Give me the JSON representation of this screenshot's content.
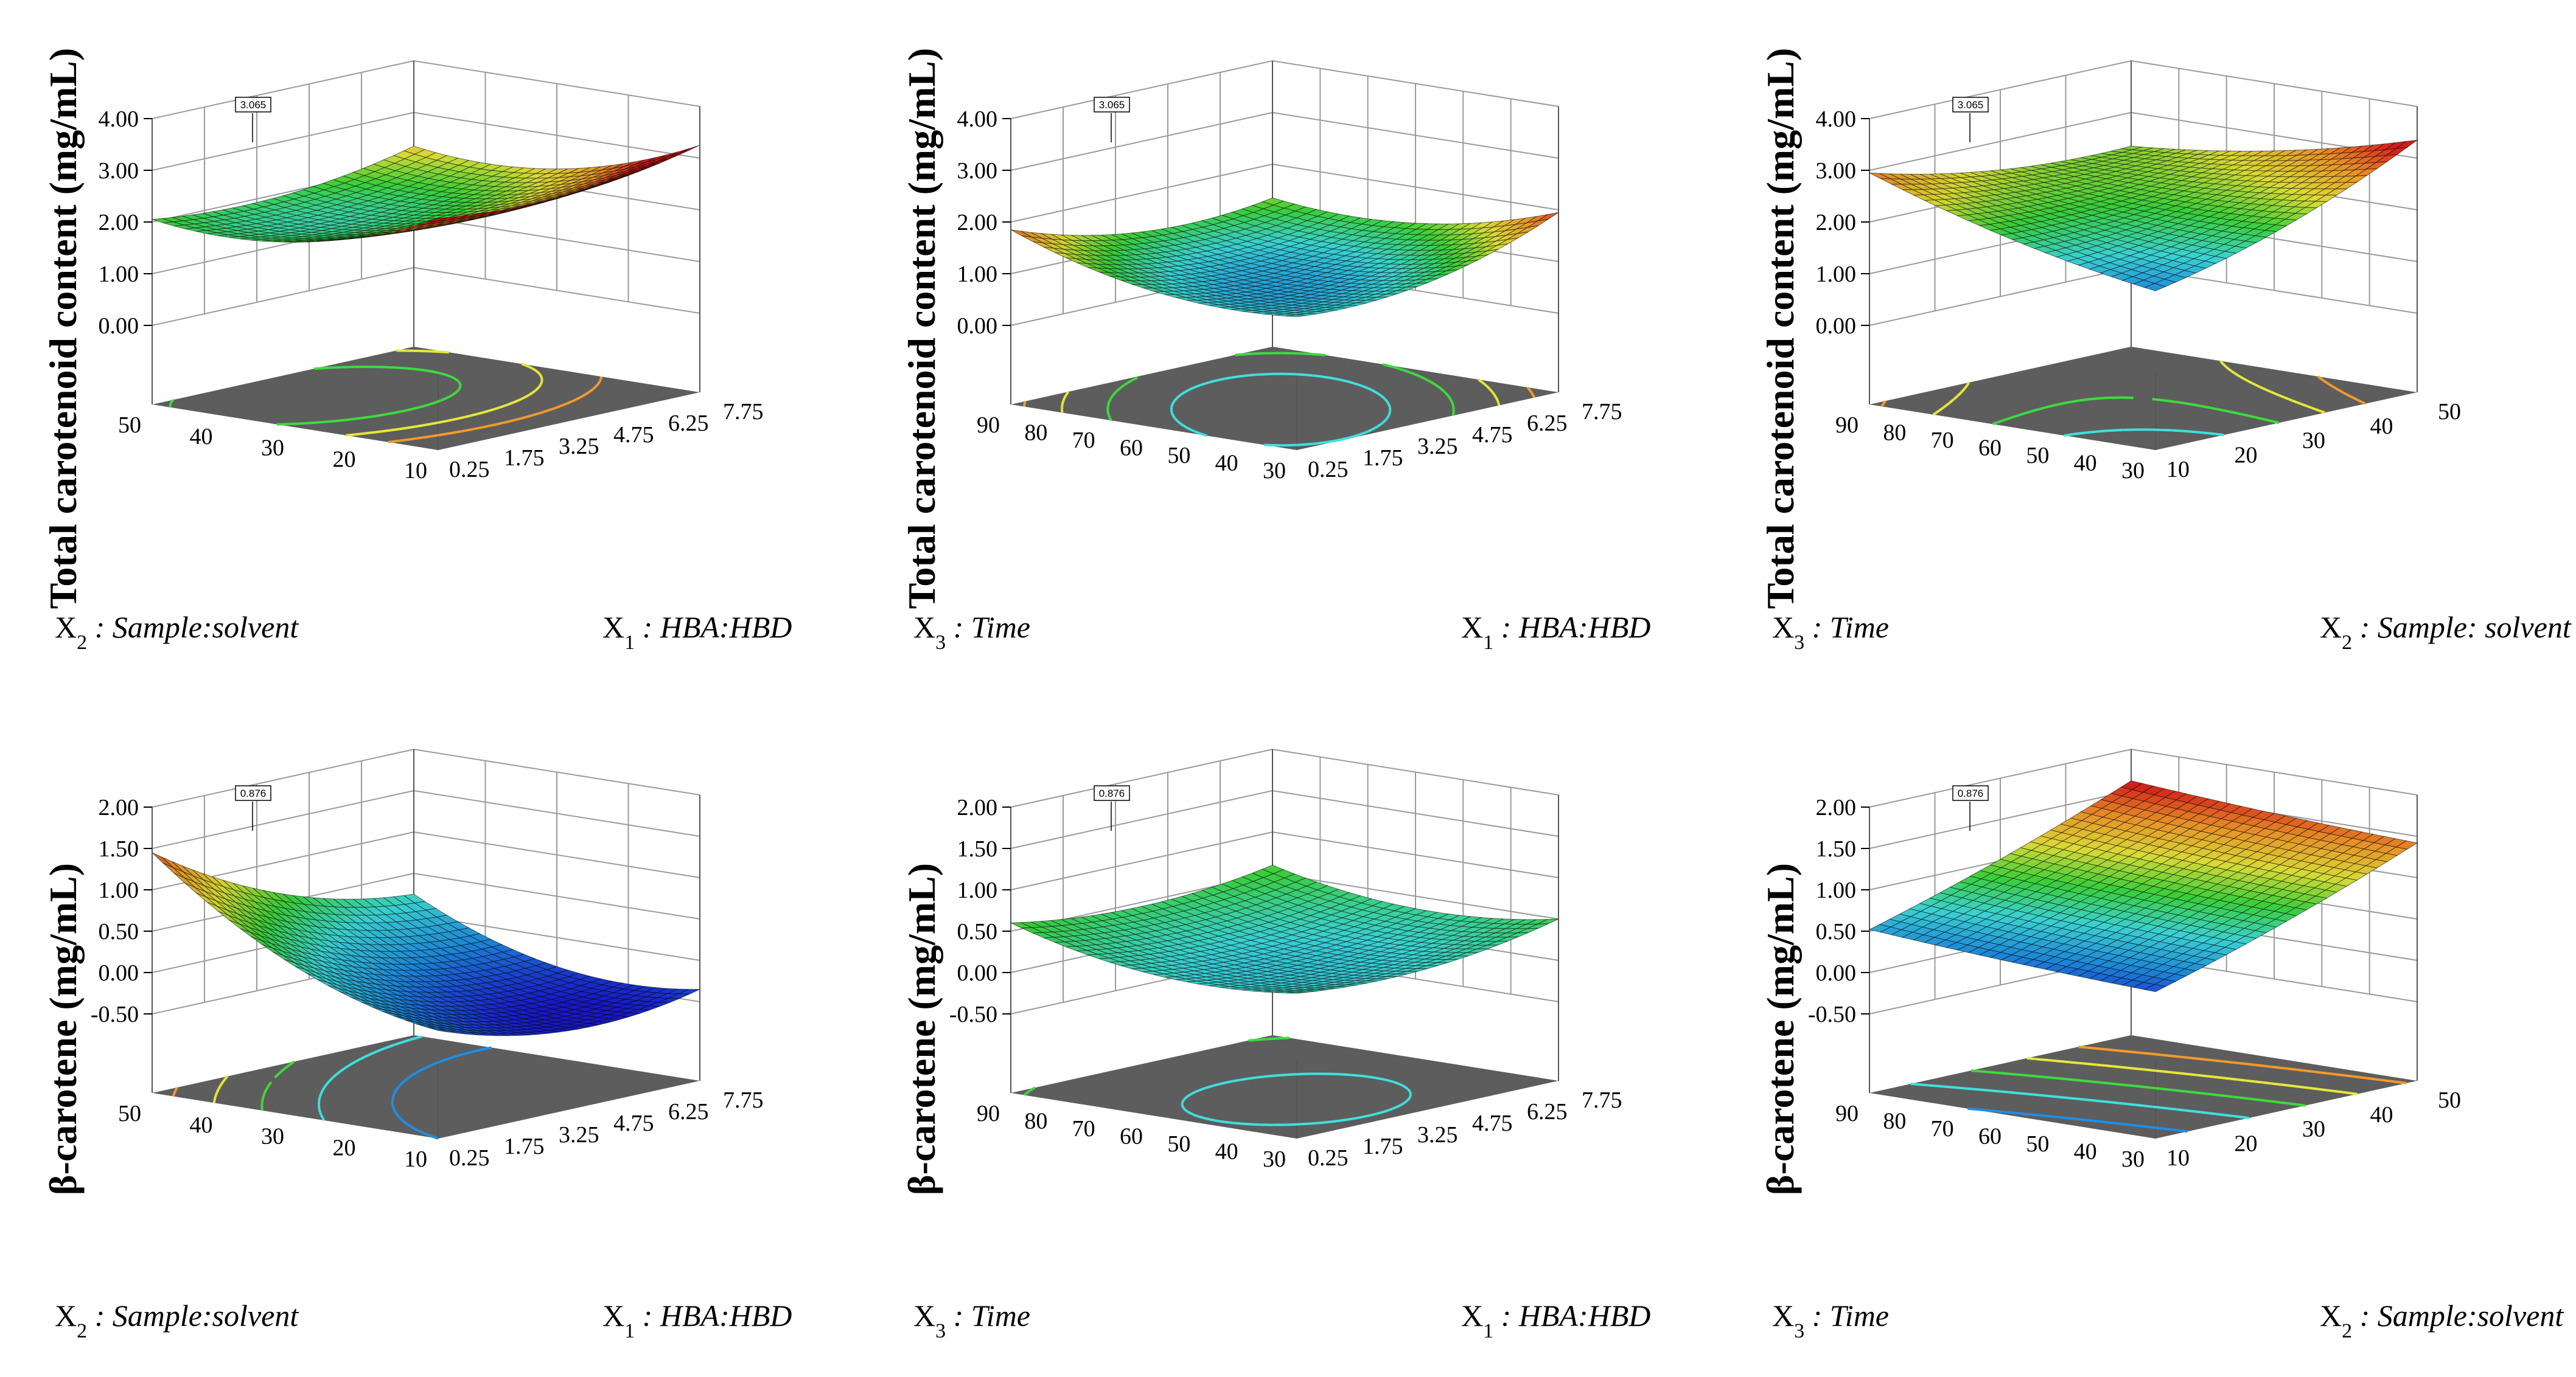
{
  "figure": {
    "rows": 2,
    "cols": 3
  },
  "colors": {
    "floor": "#5d5d5d",
    "grid": "#9a9a9a",
    "axis": "#000000",
    "colormap": [
      "#1a1ad4",
      "#1e8fe6",
      "#3fe0e0",
      "#3ddc3d",
      "#e8e83a",
      "#f59a2a",
      "#e01c1c"
    ]
  },
  "chart_data": [
    {
      "id": "tcc-x1-x2",
      "type": "surface3d",
      "zlabel": "Total carotenoid content (mg/mL)",
      "zticks": [
        "0.00",
        "1.00",
        "2.00",
        "3.00",
        "4.00"
      ],
      "zlim": [
        0,
        4
      ],
      "x": {
        "sub": "1",
        "label": "HBA:HBD",
        "ticks": [
          "0.25",
          "1.75",
          "3.25",
          "4.75",
          "6.25",
          "7.75"
        ],
        "range": [
          0.25,
          7.75
        ]
      },
      "y": {
        "sub": "2",
        "label": "Sample:solvent",
        "ticks": [
          "10",
          "20",
          "30",
          "40",
          "50"
        ],
        "range": [
          10,
          50
        ]
      },
      "flag_value": "3.065",
      "model": {
        "c": 1.95,
        "x": 0.15,
        "y": -0.45,
        "xx": 0.25,
        "yy": 0.45,
        "xy": 0.0
      },
      "color_range": [
        1.2,
        2.8
      ]
    },
    {
      "id": "tcc-x1-x3",
      "type": "surface3d",
      "zlabel": "Total carotenoid content (mg/mL)",
      "zticks": [
        "0.00",
        "1.00",
        "2.00",
        "3.00",
        "4.00"
      ],
      "zlim": [
        0,
        4
      ],
      "x": {
        "sub": "1",
        "label": "HBA:HBD",
        "ticks": [
          "0.25",
          "1.75",
          "3.25",
          "4.75",
          "6.25",
          "7.75"
        ],
        "range": [
          0.25,
          7.75
        ]
      },
      "y": {
        "sub": "3",
        "label": "Time",
        "ticks": [
          "30",
          "40",
          "50",
          "60",
          "70",
          "80",
          "90"
        ],
        "range": [
          30,
          90
        ]
      },
      "flag_value": "3.065",
      "model": {
        "c": 0.85,
        "x": 0.1,
        "y": 0.05,
        "xx": 0.35,
        "yy": 0.35,
        "xy": -0.35
      },
      "color_range": [
        0.5,
        2.0
      ]
    },
    {
      "id": "tcc-x2-x3",
      "type": "surface3d",
      "zlabel": "Total carotenoid content (mg/mL)",
      "zticks": [
        "0.00",
        "1.00",
        "2.00",
        "3.00",
        "4.00"
      ],
      "zlim": [
        0,
        4
      ],
      "x": {
        "sub": "2",
        "label": "Sample: solvent",
        "ticks": [
          "10",
          "20",
          "30",
          "40",
          "50"
        ],
        "range": [
          10,
          50
        ]
      },
      "y": {
        "sub": "3",
        "label": "Time",
        "ticks": [
          "30",
          "40",
          "50",
          "60",
          "70",
          "80",
          "90"
        ],
        "range": [
          30,
          90
        ]
      },
      "flag_value": "3.065",
      "model": {
        "c": 2.2,
        "x": 0.3,
        "y": 0.1,
        "xx": 0.2,
        "yy": 0.15,
        "xy": -0.6
      },
      "color_range": [
        1.2,
        3.2
      ]
    },
    {
      "id": "bc-x1-x2",
      "type": "surface3d",
      "zlabel": "β-carotene (mg/mL)",
      "zticks": [
        "-0.50",
        "0.00",
        "0.50",
        "1.00",
        "1.50",
        "2.00"
      ],
      "zlim": [
        -0.5,
        2
      ],
      "x": {
        "sub": "1",
        "label": "HBA:HBD",
        "ticks": [
          "0.25",
          "1.75",
          "3.25",
          "4.75",
          "6.25",
          "7.75"
        ],
        "range": [
          0.25,
          7.75
        ]
      },
      "y": {
        "sub": "2",
        "label": "Sample:solvent",
        "ticks": [
          "10",
          "20",
          "30",
          "40",
          "50"
        ],
        "range": [
          10,
          50
        ]
      },
      "flag_value": "0.876",
      "model": {
        "c": -0.25,
        "x": -0.35,
        "y": 0.55,
        "xx": 0.25,
        "yy": 0.3,
        "xy": -0.25
      },
      "color_range": [
        -0.5,
        1.6
      ]
    },
    {
      "id": "bc-x1-x3",
      "type": "surface3d",
      "zlabel": "β-carotene (mg/mL)",
      "zticks": [
        "-0.50",
        "0.00",
        "0.50",
        "1.00",
        "1.50",
        "2.00"
      ],
      "zlim": [
        -0.5,
        2
      ],
      "x": {
        "sub": "1",
        "label": "HBA:HBD",
        "ticks": [
          "0.25",
          "1.75",
          "3.25",
          "4.75",
          "6.25",
          "7.75"
        ],
        "range": [
          0.25,
          7.75
        ]
      },
      "y": {
        "sub": "3",
        "label": "Time",
        "ticks": [
          "30",
          "40",
          "50",
          "60",
          "70",
          "80",
          "90"
        ],
        "range": [
          30,
          90
        ]
      },
      "flag_value": "0.876",
      "model": {
        "c": 0.15,
        "x": 0.05,
        "y": 0.1,
        "xx": 0.15,
        "yy": 0.2,
        "xy": -0.05
      },
      "color_range": [
        -0.5,
        1.6
      ]
    },
    {
      "id": "bc-x2-x3",
      "type": "surface3d",
      "zlabel": "β-carotene (mg/mL)",
      "zticks": [
        "-0.50",
        "0.00",
        "0.50",
        "1.00",
        "1.50",
        "2.00"
      ],
      "zlim": [
        -0.5,
        2
      ],
      "x": {
        "sub": "2",
        "label": "Sample:solvent",
        "ticks": [
          "10",
          "20",
          "30",
          "40",
          "50"
        ],
        "range": [
          10,
          50
        ]
      },
      "y": {
        "sub": "3",
        "label": "Time",
        "ticks": [
          "30",
          "40",
          "50",
          "60",
          "70",
          "80",
          "90"
        ],
        "range": [
          30,
          90
        ]
      },
      "flag_value": "0.876",
      "model": {
        "c": 0.9,
        "x": 0.55,
        "y": 0.1,
        "xx": 0.05,
        "yy": 0.02,
        "xy": 0.0
      },
      "color_range": [
        0.2,
        1.6
      ]
    }
  ]
}
